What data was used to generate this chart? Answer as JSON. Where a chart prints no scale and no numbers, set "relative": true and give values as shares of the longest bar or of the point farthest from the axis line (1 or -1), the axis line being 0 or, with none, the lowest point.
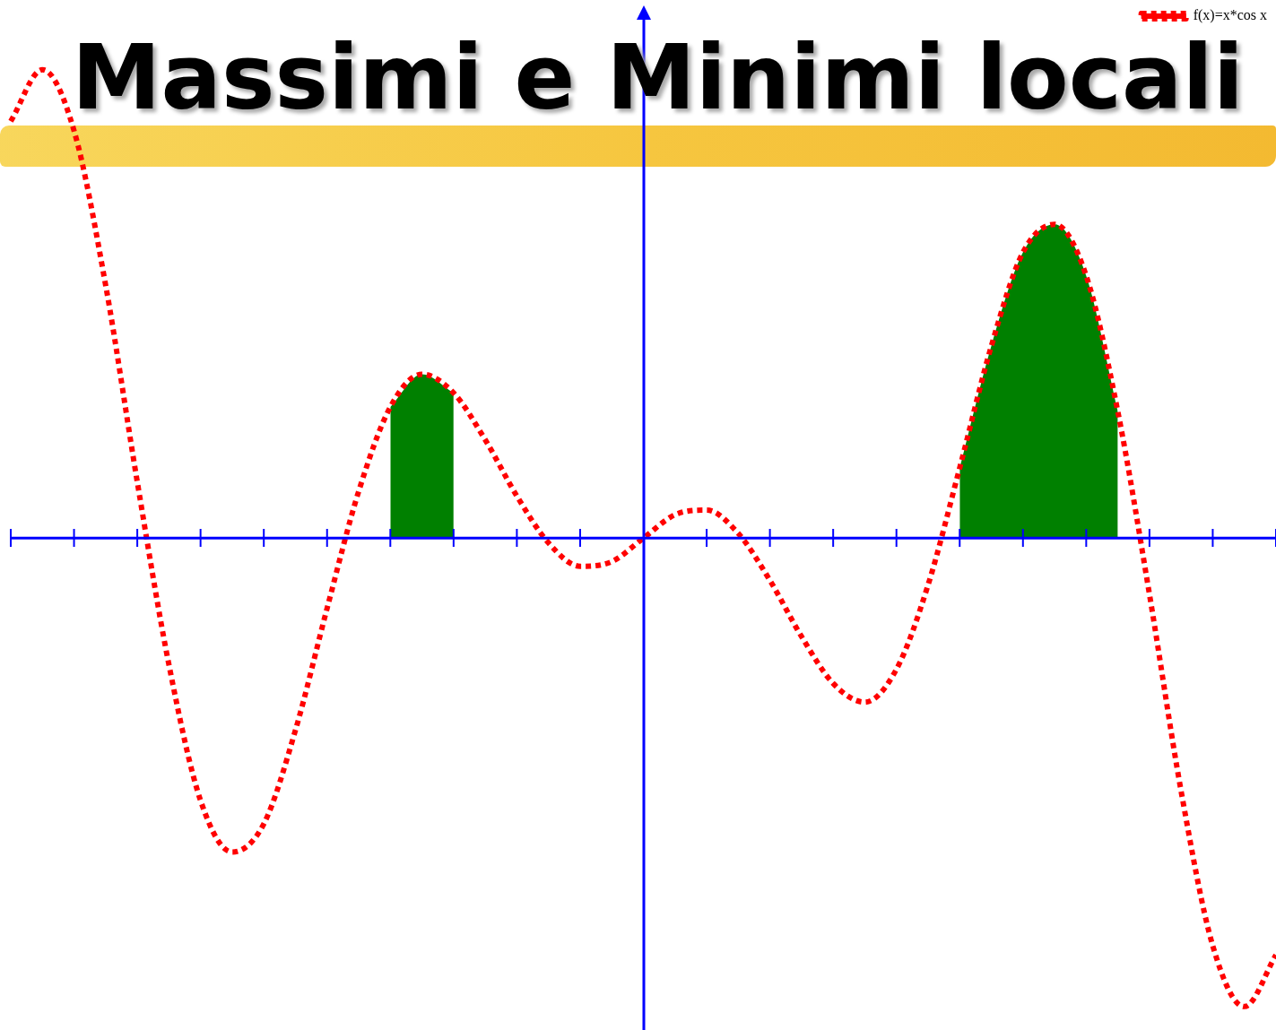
{
  "chart_data": {
    "type": "line",
    "title": "Massimi e Minimi locali",
    "relative": true,
    "legend": "top right",
    "ref_lines": [
      {
        "axis": "y",
        "value": 0,
        "color": "#0000ff"
      }
    ],
    "marker": "none",
    "categories": [
      null,
      null,
      null,
      null,
      null,
      null,
      null,
      null,
      null,
      null,
      null,
      null,
      null,
      null,
      null,
      null,
      null,
      null,
      null,
      null,
      null,
      null,
      null,
      null,
      null,
      null,
      null,
      null,
      null,
      null,
      null,
      null,
      null,
      null,
      null,
      null,
      null,
      null,
      null,
      null,
      null
    ],
    "series": [
      {
        "name": "f(x)=x*cos x",
        "color": "#ff0000",
        "line_style": "dotted",
        "values": [
          0.89,
          1,
          0.87,
          0.54,
          0.12,
          -0.27,
          -0.56,
          -0.67,
          -0.61,
          -0.41,
          -0.15,
          0.1,
          0.28,
          0.35,
          0.31,
          0.21,
          0.09,
          -0.01,
          -0.06,
          -0.05,
          0,
          0.05,
          0.06,
          0.01,
          -0.09,
          -0.21,
          -0.31,
          -0.35,
          -0.28,
          -0.1,
          0.15,
          0.41,
          0.61,
          0.67,
          0.56,
          0.27,
          -0.12,
          -0.54,
          -0.87,
          -1,
          -0.89
        ]
      },
      {
        "type": "area",
        "color": "#008000",
        "values": [
          null,
          null,
          null,
          null,
          null,
          null,
          null,
          null,
          null,
          null,
          null,
          null,
          0.28,
          0.35,
          0.31,
          null,
          null,
          null,
          null,
          null,
          null,
          null,
          null,
          null,
          null,
          null,
          null,
          null,
          null,
          null,
          0.15,
          0.41,
          0.61,
          0.67,
          0.56,
          0.27,
          null,
          null,
          null,
          null,
          null
        ]
      }
    ]
  }
}
